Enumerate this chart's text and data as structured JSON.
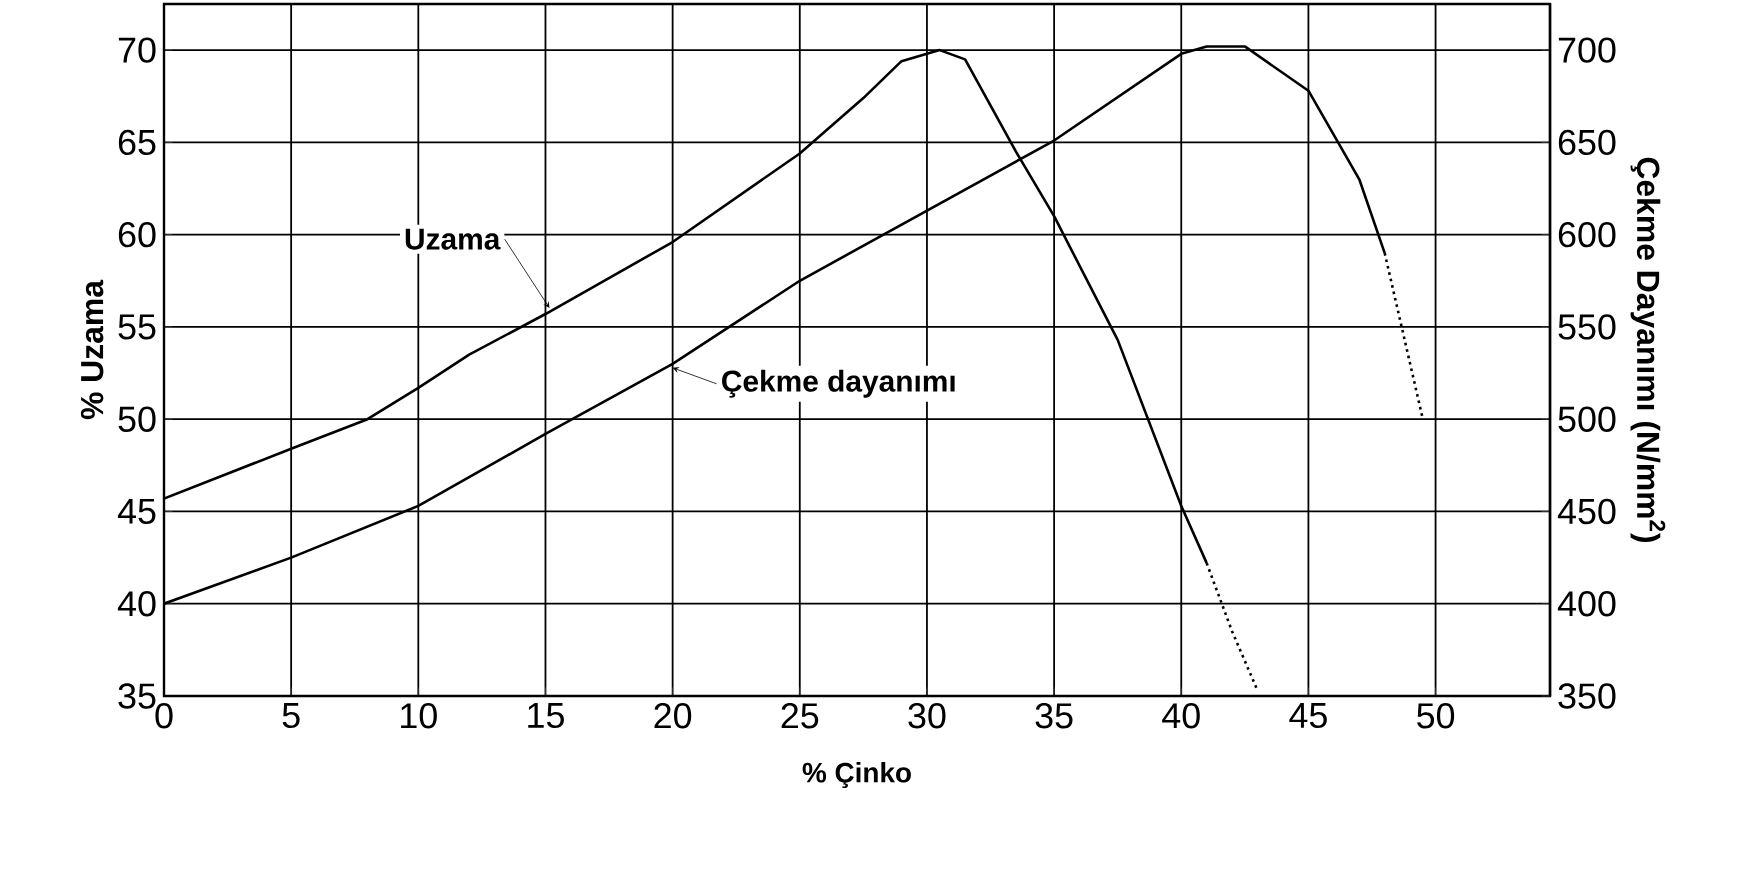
{
  "chart_data": {
    "type": "line",
    "xlabel": "% Çinko",
    "ylabel": "% Uzama",
    "y2label": "Çekme Dayanımı (N/mm$^{2}$)",
    "xlim": [
      0,
      54.5
    ],
    "xticks": [
      0,
      5,
      10,
      15,
      20,
      25,
      30,
      35,
      40,
      45,
      50
    ],
    "ylim": [
      35,
      72.5
    ],
    "yticks": [
      35,
      40,
      45,
      50,
      55,
      60,
      65,
      70
    ],
    "y2lim": [
      350,
      725
    ],
    "y2ticks": [
      350,
      400,
      450,
      500,
      550,
      600,
      650,
      700
    ],
    "grid": true,
    "marker": "none",
    "series": [
      {
        "name": "Uzama",
        "color": "#000000",
        "line_style": "solid",
        "x": [
          0,
          5,
          8,
          10,
          12,
          15,
          20,
          25,
          27.5,
          29,
          30.5,
          31.5,
          33.5,
          35,
          37.5,
          40,
          41
        ],
        "values": [
          45.7,
          48.4,
          50,
          51.7,
          53.5,
          55.7,
          59.6,
          64.4,
          67.4,
          69.4,
          70,
          69.5,
          64.5,
          61,
          54.3,
          45.3,
          42.2
        ]
      },
      {
        "color": "#000000",
        "line_style": "dotted",
        "x": [
          41,
          42,
          43
        ],
        "values": [
          42.2,
          38.5,
          35.3
        ]
      },
      {
        "name": "Çekme dayanımı",
        "color": "#000000",
        "line_style": "solid",
        "axis": "y2",
        "x": [
          0,
          5,
          10,
          15,
          20,
          25,
          30,
          35,
          40,
          41,
          42.5,
          45,
          47,
          48
        ],
        "values": [
          400,
          425,
          453,
          492,
          530,
          575,
          613,
          651,
          698,
          702,
          702,
          678,
          630,
          590
        ]
      },
      {
        "color": "#000000",
        "line_style": "dotted",
        "axis": "y2",
        "x": [
          48,
          49,
          49.5
        ],
        "values": [
          590,
          530,
          500
        ]
      }
    ]
  }
}
